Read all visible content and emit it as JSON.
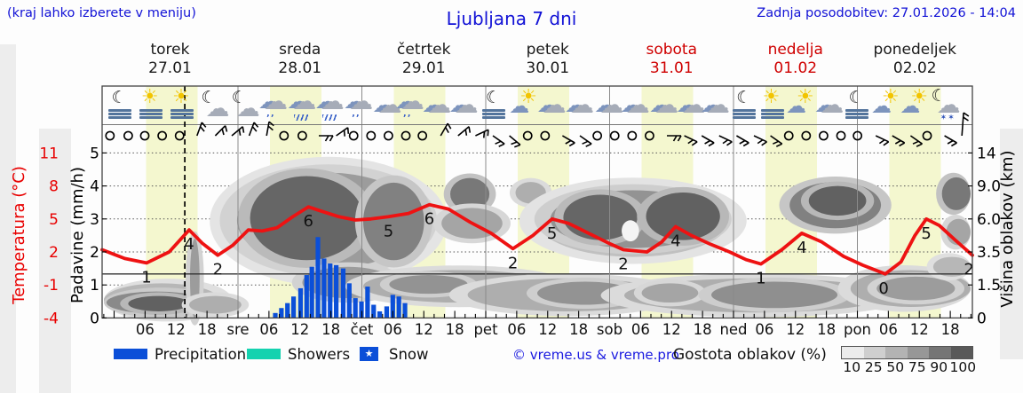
{
  "header": {
    "note": "(kraj lahko izberete v meniju)",
    "title": "Ljubljana 7 dni",
    "updated": "Zadnja posodobitev: 27.01.2026 - 14:04"
  },
  "days": [
    {
      "name": "torek",
      "date": "27.01",
      "red": false
    },
    {
      "name": "sreda",
      "date": "28.01",
      "red": false
    },
    {
      "name": "četrtek",
      "date": "29.01",
      "red": false
    },
    {
      "name": "petek",
      "date": "30.01",
      "red": false
    },
    {
      "name": "sobota",
      "date": "31.01",
      "red": true
    },
    {
      "name": "nedelja",
      "date": "01.02",
      "red": true
    },
    {
      "name": "ponedeljek",
      "date": "02.02",
      "red": false
    }
  ],
  "chart_data": {
    "type": "meteogram: temperature line + precipitation bars + cloud-density field",
    "title": "Ljubljana 7 dni",
    "axes": {
      "temperature": {
        "label": "Temperatura (°C)",
        "ticks": [
          "11",
          "8",
          "5",
          "2",
          "-1",
          "-4"
        ],
        "color": "#e80000"
      },
      "precipitation": {
        "label": "Padavine (mm/h)",
        "ticks": [
          "5",
          "4",
          "3",
          "2",
          "1",
          "0"
        ]
      },
      "cloud_height": {
        "label": "Višina oblakov (km)",
        "ticks": [
          "14",
          "9.0",
          "6.0",
          "3.5",
          "1.5",
          "0"
        ]
      },
      "time_ticks": [
        "06",
        "12",
        "18",
        "sre",
        "06",
        "12",
        "18",
        "čet",
        "06",
        "12",
        "18",
        "pet",
        "06",
        "12",
        "18",
        "sob",
        "06",
        "12",
        "18",
        "ned",
        "06",
        "12",
        "18",
        "pon",
        "06",
        "12",
        "18"
      ]
    },
    "now_line_p": 0.095,
    "temperature_curve": [
      [
        0.0,
        2.2
      ],
      [
        0.026,
        1.4
      ],
      [
        0.051,
        1.0
      ],
      [
        0.077,
        2.0
      ],
      [
        0.1,
        4.0
      ],
      [
        0.115,
        2.8
      ],
      [
        0.133,
        1.7
      ],
      [
        0.15,
        2.6
      ],
      [
        0.168,
        4.0
      ],
      [
        0.184,
        3.9
      ],
      [
        0.201,
        4.2
      ],
      [
        0.219,
        5.2
      ],
      [
        0.237,
        6.1
      ],
      [
        0.252,
        5.7
      ],
      [
        0.272,
        5.2
      ],
      [
        0.291,
        4.9
      ],
      [
        0.309,
        5.0
      ],
      [
        0.329,
        5.2
      ],
      [
        0.352,
        5.5
      ],
      [
        0.376,
        6.3
      ],
      [
        0.398,
        5.9
      ],
      [
        0.423,
        4.7
      ],
      [
        0.447,
        3.7
      ],
      [
        0.472,
        2.3
      ],
      [
        0.495,
        3.5
      ],
      [
        0.517,
        5.0
      ],
      [
        0.536,
        4.6
      ],
      [
        0.559,
        3.7
      ],
      [
        0.582,
        2.8
      ],
      [
        0.599,
        2.2
      ],
      [
        0.626,
        2.0
      ],
      [
        0.643,
        2.9
      ],
      [
        0.659,
        4.3
      ],
      [
        0.677,
        3.5
      ],
      [
        0.699,
        2.7
      ],
      [
        0.721,
        2.0
      ],
      [
        0.74,
        1.3
      ],
      [
        0.757,
        0.9
      ],
      [
        0.781,
        2.2
      ],
      [
        0.804,
        3.7
      ],
      [
        0.827,
        2.9
      ],
      [
        0.852,
        1.6
      ],
      [
        0.874,
        0.8
      ],
      [
        0.9,
        0.0
      ],
      [
        0.918,
        1.1
      ],
      [
        0.934,
        3.5
      ],
      [
        0.947,
        5.0
      ],
      [
        0.962,
        4.4
      ],
      [
        0.98,
        3.1
      ],
      [
        1.0,
        1.7
      ]
    ],
    "temperature_labels": [
      {
        "p": 0.051,
        "v": "1"
      },
      {
        "p": 0.1,
        "v": "4"
      },
      {
        "p": 0.133,
        "v": "2"
      },
      {
        "p": 0.237,
        "v": "6"
      },
      {
        "p": 0.329,
        "v": "5"
      },
      {
        "p": 0.376,
        "v": "6"
      },
      {
        "p": 0.472,
        "v": "2"
      },
      {
        "p": 0.517,
        "v": "5"
      },
      {
        "p": 0.599,
        "v": "2"
      },
      {
        "p": 0.659,
        "v": "4"
      },
      {
        "p": 0.757,
        "v": "1"
      },
      {
        "p": 0.804,
        "v": "4"
      },
      {
        "p": 0.898,
        "v": "0"
      },
      {
        "p": 0.947,
        "v": "5"
      },
      {
        "p": 0.996,
        "v": "2"
      }
    ],
    "precipitation_bars": [
      {
        "p": 0.199,
        "mm": 0.15
      },
      {
        "p": 0.206,
        "mm": 0.3
      },
      {
        "p": 0.213,
        "mm": 0.45
      },
      {
        "p": 0.22,
        "mm": 0.65
      },
      {
        "p": 0.228,
        "mm": 0.9
      },
      {
        "p": 0.235,
        "mm": 1.3
      },
      {
        "p": 0.241,
        "mm": 1.55
      },
      {
        "p": 0.248,
        "mm": 2.45
      },
      {
        "p": 0.255,
        "mm": 1.8
      },
      {
        "p": 0.262,
        "mm": 1.65
      },
      {
        "p": 0.269,
        "mm": 1.6
      },
      {
        "p": 0.277,
        "mm": 1.5
      },
      {
        "p": 0.284,
        "mm": 1.05
      },
      {
        "p": 0.291,
        "mm": 0.6
      },
      {
        "p": 0.298,
        "mm": 0.5
      },
      {
        "p": 0.305,
        "mm": 0.95
      },
      {
        "p": 0.312,
        "mm": 0.4
      },
      {
        "p": 0.319,
        "mm": 0.2
      },
      {
        "p": 0.327,
        "mm": 0.35
      },
      {
        "p": 0.334,
        "mm": 0.7
      },
      {
        "p": 0.341,
        "mm": 0.65
      },
      {
        "p": 0.348,
        "mm": 0.45
      }
    ],
    "cloud_regions": [
      [
        0.0,
        0.135,
        0.05,
        1.6,
        0.4
      ],
      [
        0.005,
        0.12,
        0.2,
        1.2,
        0.65
      ],
      [
        0.03,
        0.1,
        0.3,
        1.0,
        0.88
      ],
      [
        0.101,
        0.112,
        0.0,
        4.5,
        0.55
      ],
      [
        0.1,
        0.16,
        0.2,
        1.0,
        0.45
      ],
      [
        0.145,
        0.375,
        2.0,
        12.0,
        0.33
      ],
      [
        0.155,
        0.365,
        2.5,
        11.0,
        0.55
      ],
      [
        0.17,
        0.3,
        3.0,
        10.5,
        0.85
      ],
      [
        0.3,
        0.37,
        3.0,
        9.5,
        0.7
      ],
      [
        0.23,
        0.335,
        0.9,
        2.6,
        0.55
      ],
      [
        0.3,
        0.52,
        0.7,
        2.4,
        0.45
      ],
      [
        0.33,
        0.42,
        1.1,
        2.1,
        0.6
      ],
      [
        0.4,
        0.445,
        6.8,
        10.2,
        0.75
      ],
      [
        0.39,
        0.46,
        4.5,
        7.0,
        0.5
      ],
      [
        0.475,
        0.51,
        7.4,
        9.6,
        0.45
      ],
      [
        0.5,
        0.72,
        3.2,
        9.2,
        0.35
      ],
      [
        0.515,
        0.705,
        3.8,
        8.6,
        0.6
      ],
      [
        0.53,
        0.615,
        4.4,
        8.2,
        0.85
      ],
      [
        0.625,
        0.71,
        4.4,
        8.4,
        0.88
      ],
      [
        0.597,
        0.617,
        4.3,
        5.9,
        0.06
      ],
      [
        0.42,
        0.65,
        0.3,
        1.9,
        0.45
      ],
      [
        0.5,
        0.61,
        0.6,
        1.7,
        0.6
      ],
      [
        0.6,
        0.905,
        0.25,
        1.9,
        0.45
      ],
      [
        0.62,
        0.685,
        0.7,
        1.6,
        0.5
      ],
      [
        0.7,
        0.845,
        0.45,
        1.7,
        0.62
      ],
      [
        0.79,
        0.895,
        5.3,
        9.6,
        0.7
      ],
      [
        0.812,
        0.878,
        6.3,
        9.0,
        0.88
      ],
      [
        0.86,
        1.0,
        0.5,
        2.4,
        0.45
      ],
      [
        0.89,
        0.98,
        0.8,
        2.0,
        0.55
      ],
      [
        0.965,
        1.0,
        6.8,
        10.3,
        0.75
      ],
      [
        0.97,
        1.0,
        4.0,
        6.0,
        0.5
      ],
      [
        0.955,
        1.0,
        2.0,
        3.2,
        0.4
      ]
    ],
    "weather_icons": [
      {
        "p": 0.02,
        "t": "moon-fog"
      },
      {
        "p": 0.056,
        "t": "sun-fog"
      },
      {
        "p": 0.092,
        "t": "sun-fog"
      },
      {
        "p": 0.128,
        "t": "moon-cloud"
      },
      {
        "p": 0.163,
        "t": "moon-cloud"
      },
      {
        "p": 0.197,
        "t": "drizzle"
      },
      {
        "p": 0.23,
        "t": "rain"
      },
      {
        "p": 0.262,
        "t": "rain"
      },
      {
        "p": 0.295,
        "t": "drizzle"
      },
      {
        "p": 0.328,
        "t": "cloud"
      },
      {
        "p": 0.354,
        "t": "drizzle"
      },
      {
        "p": 0.385,
        "t": "cloud"
      },
      {
        "p": 0.416,
        "t": "cloud"
      },
      {
        "p": 0.45,
        "t": "moon-fog"
      },
      {
        "p": 0.485,
        "t": "sun-cloud"
      },
      {
        "p": 0.517,
        "t": "cloud"
      },
      {
        "p": 0.549,
        "t": "cloud"
      },
      {
        "p": 0.583,
        "t": "cloud"
      },
      {
        "p": 0.613,
        "t": "cloud"
      },
      {
        "p": 0.646,
        "t": "cloud"
      },
      {
        "p": 0.677,
        "t": "cloud"
      },
      {
        "p": 0.705,
        "t": "cloud"
      },
      {
        "p": 0.738,
        "t": "moon-fog"
      },
      {
        "p": 0.77,
        "t": "sun-fog"
      },
      {
        "p": 0.803,
        "t": "sun-cloud"
      },
      {
        "p": 0.836,
        "t": "cloud"
      },
      {
        "p": 0.867,
        "t": "moon-fog"
      },
      {
        "p": 0.901,
        "t": "sun-cloud"
      },
      {
        "p": 0.934,
        "t": "sun-cloud"
      },
      {
        "p": 0.967,
        "t": "moon-cloud-snow"
      }
    ],
    "wind": [
      {
        "p": 0.009,
        "b": "c"
      },
      {
        "p": 0.03,
        "b": "c"
      },
      {
        "p": 0.049,
        "b": "c"
      },
      {
        "p": 0.069,
        "b": "c"
      },
      {
        "p": 0.089,
        "b": "c"
      },
      {
        "p": 0.109,
        "b": -70
      },
      {
        "p": 0.13,
        "b": -45
      },
      {
        "p": 0.149,
        "b": -40
      },
      {
        "p": 0.169,
        "b": -70
      },
      {
        "p": 0.189,
        "b": -80
      },
      {
        "p": 0.209,
        "b": "c"
      },
      {
        "p": 0.23,
        "b": "c"
      },
      {
        "p": 0.249,
        "b": 0
      },
      {
        "p": 0.269,
        "b": -35
      },
      {
        "p": 0.289,
        "b": "c"
      },
      {
        "p": 0.309,
        "b": "c"
      },
      {
        "p": 0.329,
        "b": "c"
      },
      {
        "p": 0.349,
        "b": "c"
      },
      {
        "p": 0.368,
        "b": "c"
      },
      {
        "p": 0.389,
        "b": -60
      },
      {
        "p": 0.409,
        "b": -40
      },
      {
        "p": 0.429,
        "b": -25
      },
      {
        "p": 0.449,
        "b": 35
      },
      {
        "p": 0.468,
        "b": 40
      },
      {
        "p": 0.489,
        "b": "c"
      },
      {
        "p": 0.509,
        "b": "c"
      },
      {
        "p": 0.529,
        "b": 30
      },
      {
        "p": 0.549,
        "b": 35
      },
      {
        "p": 0.569,
        "b": "c"
      },
      {
        "p": 0.589,
        "b": "c"
      },
      {
        "p": 0.609,
        "b": "c"
      },
      {
        "p": 0.629,
        "b": "c"
      },
      {
        "p": 0.649,
        "b": 0
      },
      {
        "p": 0.669,
        "b": 25
      },
      {
        "p": 0.689,
        "b": 30
      },
      {
        "p": 0.709,
        "b": 25
      },
      {
        "p": 0.729,
        "b": 30
      },
      {
        "p": 0.749,
        "b": 25
      },
      {
        "p": 0.768,
        "b": 35
      },
      {
        "p": 0.789,
        "b": "c"
      },
      {
        "p": 0.809,
        "b": "c"
      },
      {
        "p": 0.829,
        "b": "c"
      },
      {
        "p": 0.849,
        "b": "c"
      },
      {
        "p": 0.868,
        "b": "c"
      },
      {
        "p": 0.889,
        "b": 25
      },
      {
        "p": 0.908,
        "b": 30
      },
      {
        "p": 0.929,
        "b": 35
      },
      {
        "p": 0.948,
        "b": "c"
      },
      {
        "p": 0.968,
        "b": 30
      },
      {
        "p": 0.988,
        "b": "t"
      }
    ],
    "colors": {
      "temperature_line": "#ee1212",
      "precipitation_bar": "#0b4fd8",
      "day_band": "#f4f7cf",
      "now_line": "#000000"
    }
  },
  "legend": {
    "precipitation": "Precipitation",
    "showers": "Showers",
    "snow": "Snow",
    "snow_star": "★",
    "credit": "© vreme.us & vreme.pro",
    "cloud_density_label": "Gostota oblakov (%)",
    "swatch_colors": {
      "precipitation": "#0b4fd8",
      "showers": "#15d2af",
      "snow": "#0b4fd8"
    },
    "density_stops": [
      {
        "label": "10",
        "color": "#ececec"
      },
      {
        "label": "25",
        "color": "#cfcfcf"
      },
      {
        "label": "50",
        "color": "#b3b3b3"
      },
      {
        "label": "75",
        "color": "#979797"
      },
      {
        "label": "90",
        "color": "#757575"
      },
      {
        "label": "100",
        "color": "#595959"
      }
    ]
  }
}
